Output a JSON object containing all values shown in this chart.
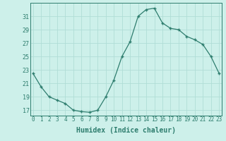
{
  "x": [
    0,
    1,
    2,
    3,
    4,
    5,
    6,
    7,
    8,
    9,
    10,
    11,
    12,
    13,
    14,
    15,
    16,
    17,
    18,
    19,
    20,
    21,
    22,
    23
  ],
  "y": [
    22.5,
    20.5,
    19.0,
    18.5,
    18.0,
    17.0,
    16.8,
    16.7,
    17.0,
    19.0,
    21.5,
    25.0,
    27.2,
    31.0,
    32.0,
    32.2,
    30.0,
    29.2,
    29.0,
    28.0,
    27.5,
    26.8,
    25.0,
    22.5
  ],
  "line_color": "#2e7d6e",
  "marker": "+",
  "marker_size": 3,
  "marker_linewidth": 1.0,
  "line_width": 0.9,
  "bg_color": "#cdf0ea",
  "grid_color": "#b0ddd6",
  "tick_color": "#2e7d6e",
  "label_color": "#2e7d6e",
  "xlabel": "Humidex (Indice chaleur)",
  "xlabel_fontsize": 7,
  "tick_fontsize": 5.5,
  "ytick_fontsize": 6,
  "yticks": [
    17,
    19,
    21,
    23,
    25,
    27,
    29,
    31
  ],
  "xticks": [
    0,
    1,
    2,
    3,
    4,
    5,
    6,
    7,
    8,
    9,
    10,
    11,
    12,
    13,
    14,
    15,
    16,
    17,
    18,
    19,
    20,
    21,
    22,
    23
  ],
  "xlim": [
    -0.3,
    23.3
  ],
  "ylim": [
    16.2,
    33.0
  ]
}
